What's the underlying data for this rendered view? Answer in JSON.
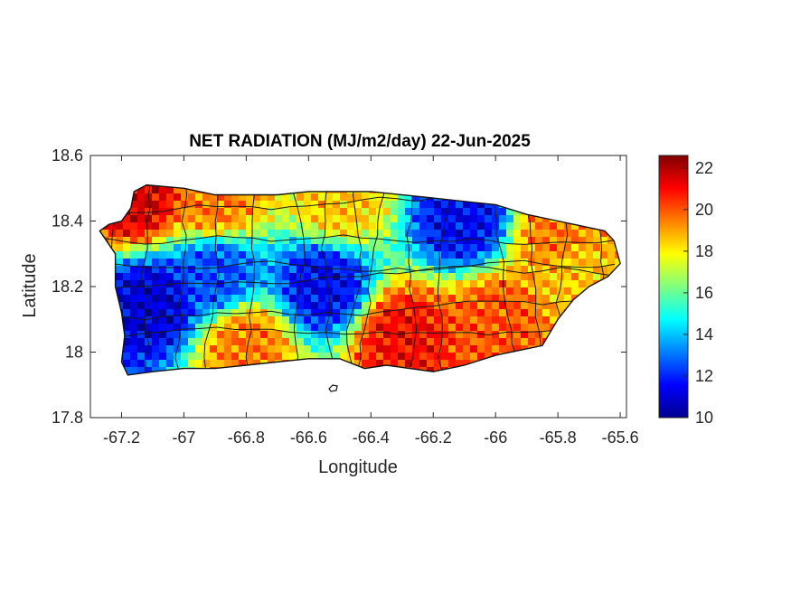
{
  "chart_data": {
    "type": "heatmap",
    "title": "NET RADIATION (MJ/m2/day) 22-Jun-2025",
    "xlabel": "Longitude",
    "ylabel": "Latitude",
    "xlim": [
      -67.3,
      -65.58
    ],
    "ylim": [
      17.8,
      18.6
    ],
    "xticks": [
      -67.2,
      -67,
      -66.8,
      -66.6,
      -66.4,
      -66.2,
      -66,
      -65.8,
      -65.6
    ],
    "yticks": [
      17.8,
      18,
      18.2,
      18.4,
      18.6
    ],
    "xtick_labels": [
      "-67.2",
      "-67",
      "-66.8",
      "-66.6",
      "-66.4",
      "-66.2",
      "-66",
      "-65.8",
      "-65.6"
    ],
    "ytick_labels": [
      "17.8",
      "18",
      "18.2",
      "18.4",
      "18.6"
    ],
    "colorbar": {
      "colormap": "jet",
      "min": 10,
      "max": 22.6,
      "ticks": [
        10,
        12,
        14,
        16,
        18,
        20,
        22
      ],
      "tick_labels": [
        "10",
        "12",
        "14",
        "16",
        "18",
        "20",
        "22"
      ]
    },
    "island_outline_lonlat": [
      [
        -67.27,
        18.37
      ],
      [
        -67.24,
        18.39
      ],
      [
        -67.2,
        18.4
      ],
      [
        -67.17,
        18.44
      ],
      [
        -67.16,
        18.49
      ],
      [
        -67.12,
        18.51
      ],
      [
        -67.0,
        18.5
      ],
      [
        -66.9,
        18.48
      ],
      [
        -66.7,
        18.48
      ],
      [
        -66.6,
        18.49
      ],
      [
        -66.4,
        18.49
      ],
      [
        -66.2,
        18.47
      ],
      [
        -66.1,
        18.46
      ],
      [
        -66.0,
        18.45
      ],
      [
        -65.9,
        18.42
      ],
      [
        -65.8,
        18.4
      ],
      [
        -65.7,
        18.38
      ],
      [
        -65.65,
        18.37
      ],
      [
        -65.62,
        18.34
      ],
      [
        -65.6,
        18.27
      ],
      [
        -65.64,
        18.23
      ],
      [
        -65.7,
        18.2
      ],
      [
        -65.75,
        18.16
      ],
      [
        -65.8,
        18.1
      ],
      [
        -65.85,
        18.02
      ],
      [
        -66.0,
        17.99
      ],
      [
        -66.1,
        17.96
      ],
      [
        -66.2,
        17.94
      ],
      [
        -66.35,
        17.96
      ],
      [
        -66.42,
        17.95
      ],
      [
        -66.5,
        17.98
      ],
      [
        -66.6,
        17.98
      ],
      [
        -66.8,
        17.96
      ],
      [
        -66.9,
        17.95
      ],
      [
        -67.0,
        17.95
      ],
      [
        -67.1,
        17.94
      ],
      [
        -67.18,
        17.93
      ],
      [
        -67.2,
        17.97
      ],
      [
        -67.19,
        18.05
      ],
      [
        -67.2,
        18.12
      ],
      [
        -67.22,
        18.2
      ],
      [
        -67.22,
        18.3
      ],
      [
        -67.27,
        18.37
      ]
    ],
    "value_field_anchors": [
      {
        "lon": -67.15,
        "lat": 18.47,
        "value": 21.5
      },
      {
        "lon": -66.9,
        "lat": 18.46,
        "value": 19.5
      },
      {
        "lon": -66.5,
        "lat": 18.46,
        "value": 18.5
      },
      {
        "lon": -66.1,
        "lat": 18.4,
        "value": 11.5
      },
      {
        "lon": -65.8,
        "lat": 18.35,
        "value": 19.5
      },
      {
        "lon": -66.9,
        "lat": 18.24,
        "value": 12.5
      },
      {
        "lon": -66.55,
        "lat": 18.2,
        "value": 11.5
      },
      {
        "lon": -67.1,
        "lat": 18.15,
        "value": 11.0
      },
      {
        "lon": -66.8,
        "lat": 18.02,
        "value": 19.5
      },
      {
        "lon": -66.3,
        "lat": 18.05,
        "value": 21.0
      },
      {
        "lon": -66.0,
        "lat": 18.1,
        "value": 20.0
      },
      {
        "lon": -65.75,
        "lat": 18.25,
        "value": 18.5
      }
    ]
  }
}
